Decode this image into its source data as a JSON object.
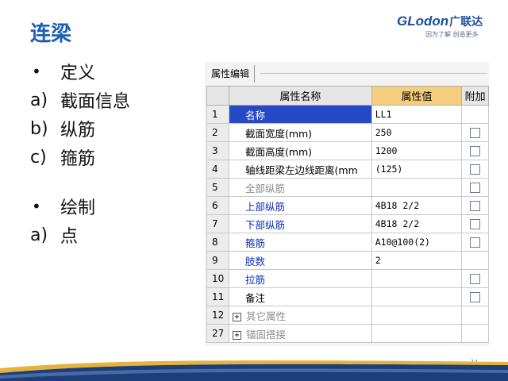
{
  "slide": {
    "title": "连梁",
    "page_number": "74"
  },
  "logo": {
    "brand": "GLodon",
    "brand_cn": "广联达",
    "slogan": "因为了解 创造更多"
  },
  "outline": {
    "items": [
      {
        "marker": "•",
        "text": "定义"
      },
      {
        "marker": "a)",
        "text": "截面信息"
      },
      {
        "marker": "b)",
        "text": "纵筋"
      },
      {
        "marker": "c)",
        "text": "箍筋"
      },
      {
        "marker": "•",
        "text": "绘制"
      },
      {
        "marker": "a)",
        "text": "点"
      }
    ]
  },
  "property_editor": {
    "tab_label": "属性编辑",
    "columns": {
      "name": "属性名称",
      "value": "属性值",
      "attach": "附加"
    },
    "rows": [
      {
        "num": "1",
        "name": "名称",
        "value": "LL1",
        "style": "selected",
        "checkbox": false
      },
      {
        "num": "2",
        "name": "截面宽度(mm)",
        "value": "250",
        "style": "black",
        "checkbox": true
      },
      {
        "num": "3",
        "name": "截面高度(mm)",
        "value": "1200",
        "style": "black",
        "checkbox": true
      },
      {
        "num": "4",
        "name": "轴线距梁左边线距离(mm",
        "value": "(125)",
        "style": "black",
        "checkbox": true
      },
      {
        "num": "5",
        "name": "全部纵筋",
        "value": "",
        "style": "gray",
        "checkbox": true
      },
      {
        "num": "6",
        "name": "上部纵筋",
        "value": "4B18 2/2",
        "style": "blue",
        "checkbox": true
      },
      {
        "num": "7",
        "name": "下部纵筋",
        "value": "4B18 2/2",
        "style": "blue",
        "checkbox": true
      },
      {
        "num": "8",
        "name": "箍筋",
        "value": "A10@100(2)",
        "style": "blue",
        "checkbox": true
      },
      {
        "num": "9",
        "name": "肢数",
        "value": "2",
        "style": "blue",
        "checkbox": false
      },
      {
        "num": "10",
        "name": "拉筋",
        "value": "",
        "style": "blue",
        "checkbox": true
      },
      {
        "num": "11",
        "name": "备注",
        "value": "",
        "style": "black",
        "checkbox": true
      },
      {
        "num": "12",
        "name": "其它属性",
        "value": "",
        "style": "group",
        "checkbox": false
      },
      {
        "num": "27",
        "name": "锚固搭接",
        "value": "",
        "style": "group",
        "checkbox": false
      }
    ]
  },
  "colors": {
    "title_blue": "#1d5fb4",
    "header_value_bg": "#f5cd7e",
    "selected_row_bg": "#2549c4",
    "rebar_blue_text": "#0b2fb9",
    "footer_navy": "#1c3f7a",
    "footer_gold": "#e6b23a"
  }
}
